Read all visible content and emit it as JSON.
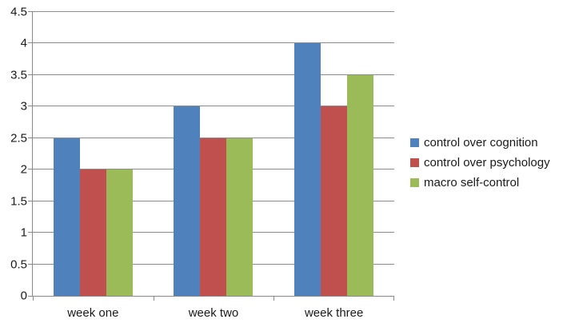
{
  "chart_data": {
    "type": "bar",
    "title": "",
    "xlabel": "",
    "ylabel": "",
    "categories": [
      "week one",
      "week two",
      "week three"
    ],
    "series": [
      {
        "name": "control over cognition",
        "color": "#4F81BD",
        "values": [
          2.5,
          3.0,
          4.0
        ]
      },
      {
        "name": "control over psychology",
        "color": "#C0504D",
        "values": [
          2.0,
          2.5,
          3.0
        ]
      },
      {
        "name": "macro self-control",
        "color": "#9BBB59",
        "values": [
          2.0,
          2.5,
          3.5
        ]
      }
    ],
    "ylim": [
      0,
      4.5
    ],
    "ytick_step": 0.5,
    "ytick_labels": [
      "0",
      "0.5",
      "1",
      "1.5",
      "2",
      "2.5",
      "3",
      "3.5",
      "4",
      "4.5"
    ],
    "grid": true,
    "legend_position": "right",
    "axis_color": "#898989",
    "gridline_color": "#8c8c8c",
    "text_color": "#1a1a1a",
    "background_color": "#ffffff"
  }
}
